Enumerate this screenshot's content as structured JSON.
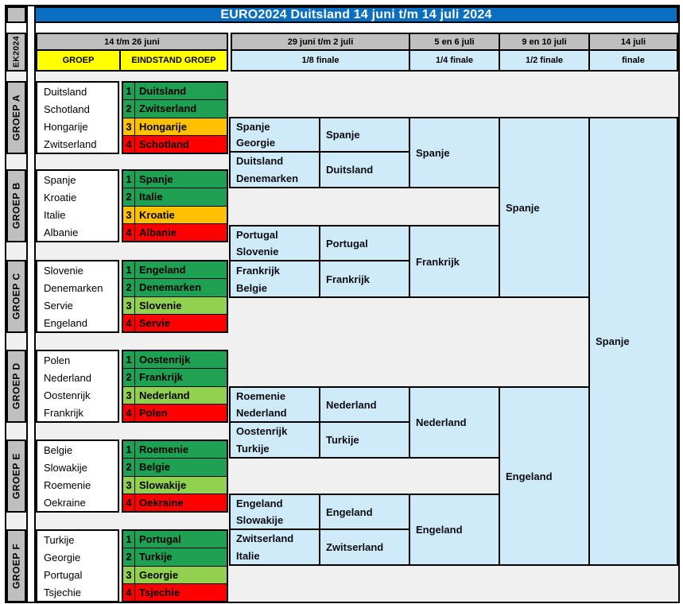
{
  "title": "EURO2024 Duitsland 14 juni t/m 14 juli 2024",
  "sidebar_label": "EK2024",
  "headers": {
    "group_stage_date": "14 t/m 26 juni",
    "groep_label": "GROEP",
    "eindstand_label": "EINDSTAND GROEP",
    "r16_date": "29 juni t/m 2 juli",
    "r16_label": "1/8 finale",
    "qf_date": "5 en 6 juli",
    "qf_label": "1/4 finale",
    "sf_date": "9 en 10 juli",
    "sf_label": "1/2 finale",
    "final_date": "14 juli",
    "final_label": "finale"
  },
  "colors": {
    "title_bg": "#0a6fc2",
    "header_gray": "#bfbfbf",
    "yellow": "#ffff00",
    "light_blue": "#cfeaf8",
    "rank_green": "#1ea152",
    "rank_light_green": "#92d050",
    "rank_amber": "#ffc000",
    "rank_red": "#fe0000",
    "gap_gray": "#f0f0f0"
  },
  "groups": [
    {
      "label": "GROEP A",
      "teams": [
        "Duitsland",
        "Schotland",
        "Hongarije",
        "Zwitserland"
      ],
      "standings": [
        {
          "rank": "1",
          "team": "Duitsland",
          "color": "green"
        },
        {
          "rank": "2",
          "team": "Zwitserland",
          "color": "green"
        },
        {
          "rank": "3",
          "team": "Hongarije",
          "color": "amber"
        },
        {
          "rank": "4",
          "team": "Schotland",
          "color": "red"
        }
      ]
    },
    {
      "label": "GROEP B",
      "teams": [
        "Spanje",
        "Kroatie",
        "Italie",
        "Albanie"
      ],
      "standings": [
        {
          "rank": "1",
          "team": "Spanje",
          "color": "green"
        },
        {
          "rank": "2",
          "team": "Italie",
          "color": "green"
        },
        {
          "rank": "3",
          "team": "Kroatie",
          "color": "amber"
        },
        {
          "rank": "4",
          "team": "Albanie",
          "color": "red"
        }
      ]
    },
    {
      "label": "GROEP C",
      "teams": [
        "Slovenie",
        "Denemarken",
        "Servie",
        "Engeland"
      ],
      "standings": [
        {
          "rank": "1",
          "team": "Engeland",
          "color": "green"
        },
        {
          "rank": "2",
          "team": "Denemarken",
          "color": "green"
        },
        {
          "rank": "3",
          "team": "Slovenie",
          "color": "lightgreen"
        },
        {
          "rank": "4",
          "team": "Servie",
          "color": "red"
        }
      ]
    },
    {
      "label": "GROEP D",
      "teams": [
        "Polen",
        "Nederland",
        "Oostenrijk",
        "Frankrijk"
      ],
      "standings": [
        {
          "rank": "1",
          "team": "Oostenrijk",
          "color": "green"
        },
        {
          "rank": "2",
          "team": "Frankrijk",
          "color": "green"
        },
        {
          "rank": "3",
          "team": "Nederland",
          "color": "lightgreen"
        },
        {
          "rank": "4",
          "team": "Polen",
          "color": "red"
        }
      ]
    },
    {
      "label": "GROEP E",
      "teams": [
        "Belgie",
        "Slowakije",
        "Roemenie",
        "Oekraine"
      ],
      "standings": [
        {
          "rank": "1",
          "team": "Roemenie",
          "color": "green"
        },
        {
          "rank": "2",
          "team": "Belgie",
          "color": "green"
        },
        {
          "rank": "3",
          "team": "Slowakije",
          "color": "lightgreen"
        },
        {
          "rank": "4",
          "team": "Oekraine",
          "color": "red"
        }
      ]
    },
    {
      "label": "GROEP F",
      "teams": [
        "Turkije",
        "Georgie",
        "Portugal",
        "Tsjechie"
      ],
      "standings": [
        {
          "rank": "1",
          "team": "Portugal",
          "color": "green"
        },
        {
          "rank": "2",
          "team": "Turkije",
          "color": "green"
        },
        {
          "rank": "3",
          "team": "Georgie",
          "color": "lightgreen"
        },
        {
          "rank": "4",
          "team": "Tsjechie",
          "color": "red"
        }
      ]
    }
  ],
  "bracket": {
    "round_of_16": [
      {
        "home": "Spanje",
        "away": "Georgie",
        "winner": "Spanje"
      },
      {
        "home": "Duitsland",
        "away": "Denemarken",
        "winner": "Duitsland"
      },
      {
        "home": "Portugal",
        "away": "Slovenie",
        "winner": "Portugal"
      },
      {
        "home": "Frankrijk",
        "away": "Belgie",
        "winner": "Frankrijk"
      },
      {
        "home": "Roemenie",
        "away": "Nederland",
        "winner": "Nederland"
      },
      {
        "home": "Oostenrijk",
        "away": "Turkije",
        "winner": "Turkije"
      },
      {
        "home": "Engeland",
        "away": "Slowakije",
        "winner": "Engeland"
      },
      {
        "home": "Zwitserland",
        "away": "Italie",
        "winner": "Zwitserland"
      }
    ],
    "quarter_winners": [
      "Spanje",
      "Frankrijk",
      "Nederland",
      "Engeland"
    ],
    "semi_winners": [
      "Spanje",
      "Engeland"
    ],
    "champion": "Spanje"
  }
}
